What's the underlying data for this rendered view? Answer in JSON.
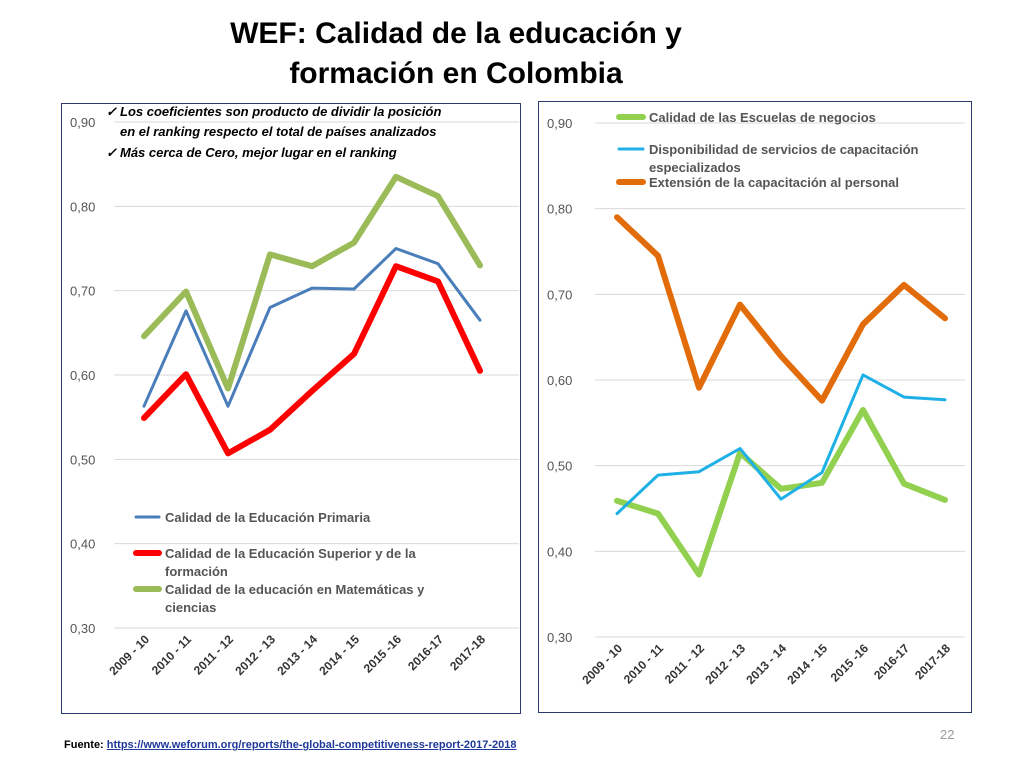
{
  "slide": {
    "title_line1": "WEF: Calidad de la educación y",
    "title_line2": "formación en Colombia",
    "source_label": "Fuente:",
    "source_url": "https://www.weforum.org/reports/the-global-competitiveness-report-2017-2018",
    "page_number": "22"
  },
  "chart_data": [
    {
      "type": "line",
      "categories": [
        "2009 - 10",
        "2010 - 11",
        "2011 - 12",
        "2012 - 13",
        "2013 - 14",
        "2014 - 15",
        "2015 -16",
        "2016-17",
        "2017-18"
      ],
      "ylim": [
        0.3,
        0.9
      ],
      "yticks": [
        "0,30",
        "0,40",
        "0,50",
        "0,60",
        "0,70",
        "0,80",
        "0,90"
      ],
      "grid": true,
      "notes": [
        "Los coeficientes son producto de dividir la posición",
        "en el ranking respecto el total de países analizados",
        "Más cerca de Cero, mejor lugar en el ranking"
      ],
      "series": [
        {
          "name": "Calidad de la Educación Primaria",
          "color": "#4a7ebb",
          "width": 3,
          "values": [
            0.563,
            0.676,
            0.563,
            0.68,
            0.703,
            0.702,
            0.75,
            0.732,
            0.665
          ]
        },
        {
          "name": "Calidad de la Educación Superior y de la formación",
          "color": "#ff0000",
          "width": 6,
          "values": [
            0.549,
            0.601,
            0.507,
            0.535,
            0.581,
            0.625,
            0.729,
            0.711,
            0.605
          ]
        },
        {
          "name": "Calidad de la educación en Matemáticas y ciencias",
          "color": "#9bbb59",
          "width": 6,
          "values": [
            0.646,
            0.699,
            0.584,
            0.743,
            0.729,
            0.757,
            0.835,
            0.812,
            0.73
          ]
        }
      ],
      "legend_lines": [
        [
          "Calidad de la Educación Primaria"
        ],
        [
          "Calidad de la Educación Superior y de la",
          "formación"
        ],
        [
          "Calidad de la educación en Matemáticas y",
          "ciencias"
        ]
      ]
    },
    {
      "type": "line",
      "categories": [
        "2009 - 10",
        "2010 - 11",
        "2011 - 12",
        "2012 - 13",
        "2013 - 14",
        "2014 - 15",
        "2015 -16",
        "2016-17",
        "2017-18"
      ],
      "ylim": [
        0.3,
        0.9
      ],
      "yticks": [
        "0,30",
        "0,40",
        "0,50",
        "0,60",
        "0,70",
        "0,80",
        "0,90"
      ],
      "grid": true,
      "series": [
        {
          "name": "Calidad de las Escuelas de negocios",
          "color": "#92d050",
          "width": 6,
          "values": [
            0.459,
            0.444,
            0.373,
            0.515,
            0.473,
            0.48,
            0.565,
            0.479,
            0.46
          ]
        },
        {
          "name": "Disponibilidad de servicios de capacitación especializados",
          "color": "#1fb0e6",
          "width": 3,
          "values": [
            0.444,
            0.489,
            0.493,
            0.52,
            0.461,
            0.492,
            0.606,
            0.58,
            0.577
          ]
        },
        {
          "name": "Extensión de la capacitación al personal",
          "color": "#e36c0a",
          "width": 6,
          "values": [
            0.79,
            0.745,
            0.591,
            0.688,
            0.628,
            0.576,
            0.665,
            0.711,
            0.672
          ]
        }
      ],
      "legend_lines": [
        [
          "Calidad de las Escuelas de negocios"
        ],
        [
          "Disponibilidad de servicios de capacitación",
          "especializados"
        ],
        [
          "Extensión de la capacitación al personal"
        ]
      ]
    }
  ]
}
